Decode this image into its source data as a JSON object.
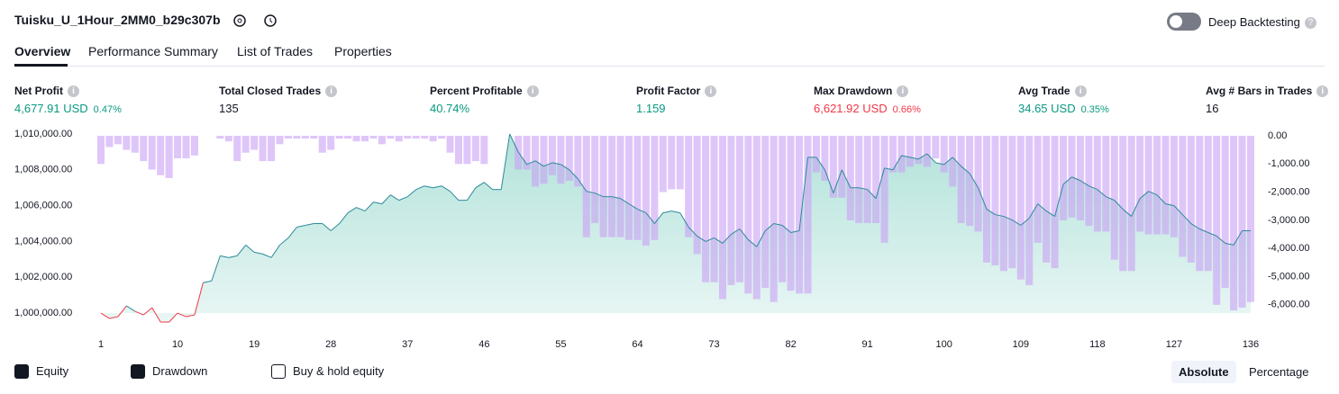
{
  "header": {
    "title": "Tuisku_U_1Hour_2MM0_b29c307b",
    "toggle_label": "Deep Backtesting"
  },
  "tabs": [
    "Overview",
    "Performance Summary",
    "List of Trades",
    "Properties"
  ],
  "metrics": [
    {
      "label": "Net Profit",
      "value": "4,677.91 USD",
      "percent": "0.47%",
      "color": "#089981"
    },
    {
      "label": "Total Closed Trades",
      "value": "135",
      "color": "#131722"
    },
    {
      "label": "Percent Profitable",
      "value": "40.74%",
      "color": "#089981"
    },
    {
      "label": "Profit Factor",
      "value": "1.159",
      "color": "#089981"
    },
    {
      "label": "Max Drawdown",
      "value": "6,621.92 USD",
      "percent": "0.66%",
      "color": "#f23645"
    },
    {
      "label": "Avg Trade",
      "value": "34.65 USD",
      "percent": "0.35%",
      "color": "#089981"
    },
    {
      "label": "Avg # Bars in Trades",
      "value": "16",
      "color": "#131722"
    }
  ],
  "chart_data": {
    "type": "equity-drawdown",
    "x": [
      1,
      2,
      3,
      4,
      5,
      6,
      7,
      8,
      9,
      10,
      11,
      12,
      13,
      14,
      15,
      16,
      17,
      18,
      19,
      20,
      21,
      22,
      23,
      24,
      25,
      26,
      27,
      28,
      29,
      30,
      31,
      32,
      33,
      34,
      35,
      36,
      37,
      38,
      39,
      40,
      41,
      42,
      43,
      44,
      45,
      46,
      47,
      48,
      49,
      50,
      51,
      52,
      53,
      54,
      55,
      56,
      57,
      58,
      59,
      60,
      61,
      62,
      63,
      64,
      65,
      66,
      67,
      68,
      69,
      70,
      71,
      72,
      73,
      74,
      75,
      76,
      77,
      78,
      79,
      80,
      81,
      82,
      83,
      84,
      85,
      86,
      87,
      88,
      89,
      90,
      91,
      92,
      93,
      94,
      95,
      96,
      97,
      98,
      99,
      100,
      101,
      102,
      103,
      104,
      105,
      106,
      107,
      108,
      109,
      110,
      111,
      112,
      113,
      114,
      115,
      116,
      117,
      118,
      119,
      120,
      121,
      122,
      123,
      124,
      125,
      126,
      127,
      128,
      129,
      130,
      131,
      132,
      133,
      134,
      135,
      136
    ],
    "xlim": [
      1,
      136
    ],
    "xticks": [
      1,
      10,
      19,
      28,
      37,
      46,
      55,
      64,
      73,
      82,
      91,
      100,
      109,
      118,
      127,
      136
    ],
    "ylim": [
      999300,
      1010200
    ],
    "yticks": [
      {
        "value": 1000000,
        "label": "1,000,000.00"
      },
      {
        "value": 1002000,
        "label": "1,002,000.00"
      },
      {
        "value": 1004000,
        "label": "1,004,000.00"
      },
      {
        "value": 1006000,
        "label": "1,006,000.00"
      },
      {
        "value": 1008000,
        "label": "1,008,000.00"
      },
      {
        "value": 1010000,
        "label": "1,010,000.00"
      }
    ],
    "y2lim": [
      -6740,
      190
    ],
    "y2ticks": [
      {
        "value": 0,
        "label": "0.00"
      },
      {
        "value": -1000,
        "label": "-1,000.00"
      },
      {
        "value": -2000,
        "label": "-2,000.00"
      },
      {
        "value": -3000,
        "label": "-3,000.00"
      },
      {
        "value": -4000,
        "label": "-4,000.00"
      },
      {
        "value": -5000,
        "label": "-5,000.00"
      },
      {
        "value": -6000,
        "label": "-6,000.00"
      }
    ],
    "series": [
      {
        "name": "Equity",
        "color": "#22ab94",
        "negative_color": "#f23645",
        "values": [
          1000000,
          999700,
          999800,
          1000400,
          1000100,
          999900,
          1000300,
          999500,
          999500,
          1000000,
          999800,
          999900,
          1001700,
          1001800,
          1003200,
          1003100,
          1003200,
          1003800,
          1003400,
          1003300,
          1003100,
          1003800,
          1004200,
          1004800,
          1004900,
          1005000,
          1005000,
          1004600,
          1005000,
          1005600,
          1005900,
          1005700,
          1006200,
          1006100,
          1006600,
          1006300,
          1006500,
          1006900,
          1007100,
          1007000,
          1007100,
          1006800,
          1006300,
          1006300,
          1007000,
          1007300,
          1006900,
          1006900,
          1010000,
          1009000,
          1008300,
          1008500,
          1008200,
          1008400,
          1008300,
          1008000,
          1007500,
          1006800,
          1006700,
          1006500,
          1006500,
          1006400,
          1006100,
          1005800,
          1005600,
          1005000,
          1005600,
          1005700,
          1005600,
          1004800,
          1004300,
          1004000,
          1004200,
          1003900,
          1004400,
          1004700,
          1004100,
          1003700,
          1004600,
          1005000,
          1004900,
          1004500,
          1004600,
          1008700,
          1008700,
          1008000,
          1006700,
          1008000,
          1007000,
          1007000,
          1006900,
          1006400,
          1008100,
          1008000,
          1008800,
          1008700,
          1008600,
          1008900,
          1008400,
          1008300,
          1008700,
          1008200,
          1007800,
          1007000,
          1005800,
          1005500,
          1005400,
          1005200,
          1004900,
          1005300,
          1006100,
          1005700,
          1005400,
          1007200,
          1007600,
          1007400,
          1007100,
          1006900,
          1006500,
          1006300,
          1005800,
          1005400,
          1006400,
          1006800,
          1006600,
          1006100,
          1006000,
          1005500,
          1005000,
          1004700,
          1004500,
          1004300,
          1003900,
          1003800,
          1004600,
          1004600
        ]
      },
      {
        "name": "Drawdown",
        "color": "#c9a0f5",
        "axis": "y2",
        "values": [
          -1000,
          -400,
          -300,
          -500,
          -600,
          -900,
          -1200,
          -1400,
          -1500,
          -800,
          -800,
          -700,
          0,
          0,
          -100,
          -200,
          -900,
          -600,
          -500,
          -900,
          -900,
          -300,
          -100,
          -100,
          -100,
          -100,
          -600,
          -500,
          -100,
          -100,
          -200,
          -200,
          -100,
          -300,
          -100,
          -200,
          -100,
          -100,
          -100,
          -200,
          -100,
          -600,
          -1000,
          -1000,
          -900,
          -1000,
          0,
          0,
          0,
          -1200,
          -1200,
          -1800,
          -1700,
          -1400,
          -1700,
          -1600,
          -1800,
          -3600,
          -3100,
          -3600,
          -3600,
          -3600,
          -3700,
          -3700,
          -3900,
          -3700,
          -2000,
          -1900,
          -1900,
          -3600,
          -4200,
          -5200,
          -5200,
          -5800,
          -5300,
          -5200,
          -5600,
          -5800,
          -5400,
          -5900,
          -5200,
          -5500,
          -5600,
          -5600,
          -1300,
          -1600,
          -2200,
          -2200,
          -3000,
          -3100,
          -3100,
          -3100,
          -3800,
          -1300,
          -1300,
          -1100,
          -1000,
          -1100,
          -800,
          -1300,
          -1800,
          -3100,
          -3200,
          -3400,
          -4500,
          -4600,
          -4800,
          -4700,
          -5100,
          -5300,
          -3800,
          -4500,
          -4700,
          -3000,
          -2900,
          -3000,
          -3200,
          -3400,
          -3400,
          -4400,
          -4800,
          -4800,
          -3400,
          -3500,
          -3500,
          -3500,
          -3600,
          -4300,
          -4500,
          -4800,
          -4800,
          -6000,
          -5400,
          -6200,
          -6100,
          -5900
        ]
      }
    ],
    "legend_extra": "Buy & hold equity"
  },
  "scale_buttons": [
    "Absolute",
    "Percentage"
  ]
}
